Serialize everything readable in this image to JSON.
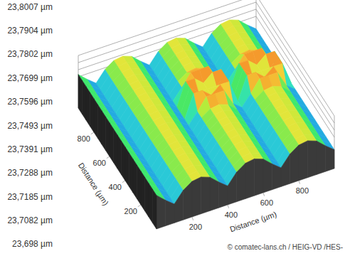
{
  "chart_data": {
    "type": "surface",
    "xlabel": "Distance (µm)",
    "ylabel": "Distance (µm)",
    "xlim": [
      0,
      1000
    ],
    "ylim": [
      0,
      1000
    ],
    "xticks": [
      200,
      400,
      600,
      800
    ],
    "yticks": [
      200,
      400,
      600,
      800
    ],
    "x": [
      0,
      50,
      100,
      150,
      200,
      250,
      300,
      350,
      400,
      450,
      500,
      550,
      600,
      650,
      700,
      750,
      800,
      850,
      900,
      950,
      1000
    ],
    "y": [
      0,
      50,
      100,
      150,
      200,
      250,
      300,
      350,
      400,
      450,
      500,
      550,
      600,
      650,
      700,
      750,
      800,
      850,
      900,
      950,
      1000
    ],
    "heights": [
      [
        23.763,
        23.7347,
        23.7097,
        23.748,
        23.7697,
        23.7747,
        23.763,
        23.7347,
        23.7097,
        23.748,
        23.7697,
        23.7747,
        23.763,
        23.7347,
        23.7097,
        23.748,
        23.7697,
        23.7747,
        23.763,
        23.7347,
        23.7097
      ],
      [
        23.763,
        23.7347,
        23.7097,
        23.748,
        23.7697,
        23.7747,
        23.763,
        23.7347,
        23.7097,
        23.748,
        23.7697,
        23.7747,
        23.763,
        23.7347,
        23.7097,
        23.748,
        23.7697,
        23.7747,
        23.763,
        23.7347,
        23.7097
      ],
      [
        23.763,
        23.7347,
        23.7097,
        23.748,
        23.7697,
        23.7747,
        23.763,
        23.7347,
        23.7097,
        23.748,
        23.7697,
        23.7747,
        23.763,
        23.7347,
        23.7097,
        23.748,
        23.7697,
        23.7747,
        23.763,
        23.7347,
        23.7097
      ],
      [
        23.763,
        23.7347,
        23.7097,
        23.748,
        23.7697,
        23.7747,
        23.763,
        23.7347,
        23.7097,
        23.748,
        23.7697,
        23.7747,
        23.763,
        23.7347,
        23.7097,
        23.748,
        23.7697,
        23.7747,
        23.763,
        23.7347,
        23.7097
      ],
      [
        23.763,
        23.7347,
        23.7097,
        23.748,
        23.7697,
        23.7747,
        23.763,
        23.7347,
        23.7097,
        23.748,
        23.7697,
        23.7747,
        23.763,
        23.7347,
        23.7097,
        23.748,
        23.7697,
        23.7747,
        23.763,
        23.7347,
        23.7097
      ],
      [
        23.763,
        23.7347,
        23.7097,
        23.748,
        23.7697,
        23.7747,
        23.763,
        23.7347,
        23.7097,
        23.748,
        23.7697,
        23.7747,
        23.763,
        23.7347,
        23.7097,
        23.748,
        23.7697,
        23.7747,
        23.763,
        23.7347,
        23.7097
      ],
      [
        23.763,
        23.7347,
        23.7097,
        23.748,
        23.7697,
        23.7747,
        23.763,
        23.7347,
        23.7097,
        23.748,
        23.7697,
        23.7747,
        23.763,
        23.7347,
        23.7097,
        23.748,
        23.7697,
        23.7747,
        23.763,
        23.7347,
        23.7097
      ],
      [
        23.763,
        23.7347,
        23.7097,
        23.748,
        23.7697,
        23.7747,
        23.763,
        23.7347,
        23.7097,
        23.748,
        23.7697,
        23.7747,
        23.763,
        23.7347,
        23.7097,
        23.748,
        23.7697,
        23.7747,
        23.763,
        23.7347,
        23.7097
      ],
      [
        23.763,
        23.7347,
        23.7097,
        23.748,
        23.7697,
        23.7747,
        23.763,
        23.7347,
        23.7097,
        23.748,
        23.7697,
        23.7747,
        23.763,
        23.7347,
        23.7097,
        23.748,
        23.7697,
        23.7747,
        23.763,
        23.7347,
        23.7097
      ],
      [
        23.763,
        23.7347,
        23.7097,
        23.748,
        23.7697,
        23.7747,
        23.763,
        23.7347,
        23.7097,
        23.748,
        23.7697,
        23.7747,
        23.763,
        23.7347,
        23.7097,
        23.748,
        23.7697,
        23.7747,
        23.763,
        23.7347,
        23.7097
      ],
      [
        23.763,
        23.7347,
        23.7097,
        23.748,
        23.7697,
        23.7747,
        23.763,
        23.7347,
        23.7097,
        23.748,
        23.792,
        23.792,
        23.792,
        23.7347,
        23.7097,
        23.748,
        23.792,
        23.792,
        23.792,
        23.7347,
        23.7097
      ],
      [
        23.763,
        23.7347,
        23.7097,
        23.748,
        23.7697,
        23.7747,
        23.763,
        23.7347,
        23.7097,
        23.792,
        23.792,
        23.765,
        23.792,
        23.792,
        23.7097,
        23.792,
        23.792,
        23.765,
        23.792,
        23.792,
        23.7097
      ],
      [
        23.763,
        23.7347,
        23.7097,
        23.748,
        23.7697,
        23.7747,
        23.763,
        23.7347,
        23.7097,
        23.792,
        23.765,
        23.765,
        23.765,
        23.792,
        23.7097,
        23.792,
        23.765,
        23.765,
        23.765,
        23.792,
        23.7097
      ],
      [
        23.763,
        23.7347,
        23.7097,
        23.748,
        23.7697,
        23.7747,
        23.763,
        23.7347,
        23.7097,
        23.792,
        23.792,
        23.765,
        23.792,
        23.792,
        23.7097,
        23.792,
        23.792,
        23.765,
        23.792,
        23.792,
        23.7097
      ],
      [
        23.763,
        23.7347,
        23.7097,
        23.748,
        23.7697,
        23.7747,
        23.763,
        23.7347,
        23.7097,
        23.748,
        23.792,
        23.792,
        23.792,
        23.7347,
        23.7097,
        23.748,
        23.792,
        23.792,
        23.792,
        23.7347,
        23.7097
      ],
      [
        23.763,
        23.7347,
        23.7097,
        23.748,
        23.7697,
        23.7747,
        23.763,
        23.7347,
        23.7097,
        23.748,
        23.7697,
        23.7747,
        23.763,
        23.7347,
        23.7097,
        23.748,
        23.7697,
        23.7747,
        23.763,
        23.7347,
        23.7097
      ],
      [
        23.763,
        23.7347,
        23.7097,
        23.748,
        23.7697,
        23.7747,
        23.763,
        23.7347,
        23.7097,
        23.748,
        23.7697,
        23.7747,
        23.763,
        23.7347,
        23.7097,
        23.748,
        23.7697,
        23.7747,
        23.763,
        23.7347,
        23.7097
      ],
      [
        23.763,
        23.7347,
        23.7097,
        23.748,
        23.7697,
        23.7747,
        23.763,
        23.7347,
        23.7097,
        23.748,
        23.7697,
        23.7747,
        23.763,
        23.7347,
        23.7097,
        23.748,
        23.7697,
        23.7747,
        23.763,
        23.7347,
        23.7097
      ],
      [
        23.763,
        23.7347,
        23.7097,
        23.748,
        23.7697,
        23.7747,
        23.763,
        23.7347,
        23.7097,
        23.748,
        23.7697,
        23.7747,
        23.763,
        23.7347,
        23.7097,
        23.748,
        23.7697,
        23.7747,
        23.763,
        23.7347,
        23.7097
      ],
      [
        23.763,
        23.7347,
        23.7097,
        23.748,
        23.7697,
        23.7747,
        23.763,
        23.7347,
        23.7097,
        23.748,
        23.7697,
        23.7747,
        23.763,
        23.7347,
        23.7097,
        23.748,
        23.7697,
        23.7747,
        23.763,
        23.7347,
        23.7097
      ],
      [
        23.763,
        23.7347,
        23.7097,
        23.748,
        23.7697,
        23.7747,
        23.763,
        23.7347,
        23.7097,
        23.748,
        23.7697,
        23.7747,
        23.763,
        23.7347,
        23.7097,
        23.748,
        23.7697,
        23.7747,
        23.763,
        23.7347,
        23.7097
      ]
    ],
    "color_scale": {
      "range": [
        23.698,
        23.8007
      ],
      "ticks": [
        {
          "value": 23.8007,
          "label": "23,8007 µm"
        },
        {
          "value": 23.7904,
          "label": "23,7904 µm"
        },
        {
          "value": 23.7802,
          "label": "23,7802 µm"
        },
        {
          "value": 23.7699,
          "label": "23,7699 µm"
        },
        {
          "value": 23.7596,
          "label": "23,7596 µm"
        },
        {
          "value": 23.7493,
          "label": "23,7493 µm"
        },
        {
          "value": 23.7391,
          "label": "23,7391 µm"
        },
        {
          "value": 23.7288,
          "label": "23,7288 µm"
        },
        {
          "value": 23.7185,
          "label": "23,7185 µm"
        },
        {
          "value": 23.7082,
          "label": "23,7082 µm"
        },
        {
          "value": 23.698,
          "label": "23,698 µm"
        }
      ]
    },
    "credit": "© comatec-lans.ch / HEIG-VD /HES-"
  }
}
